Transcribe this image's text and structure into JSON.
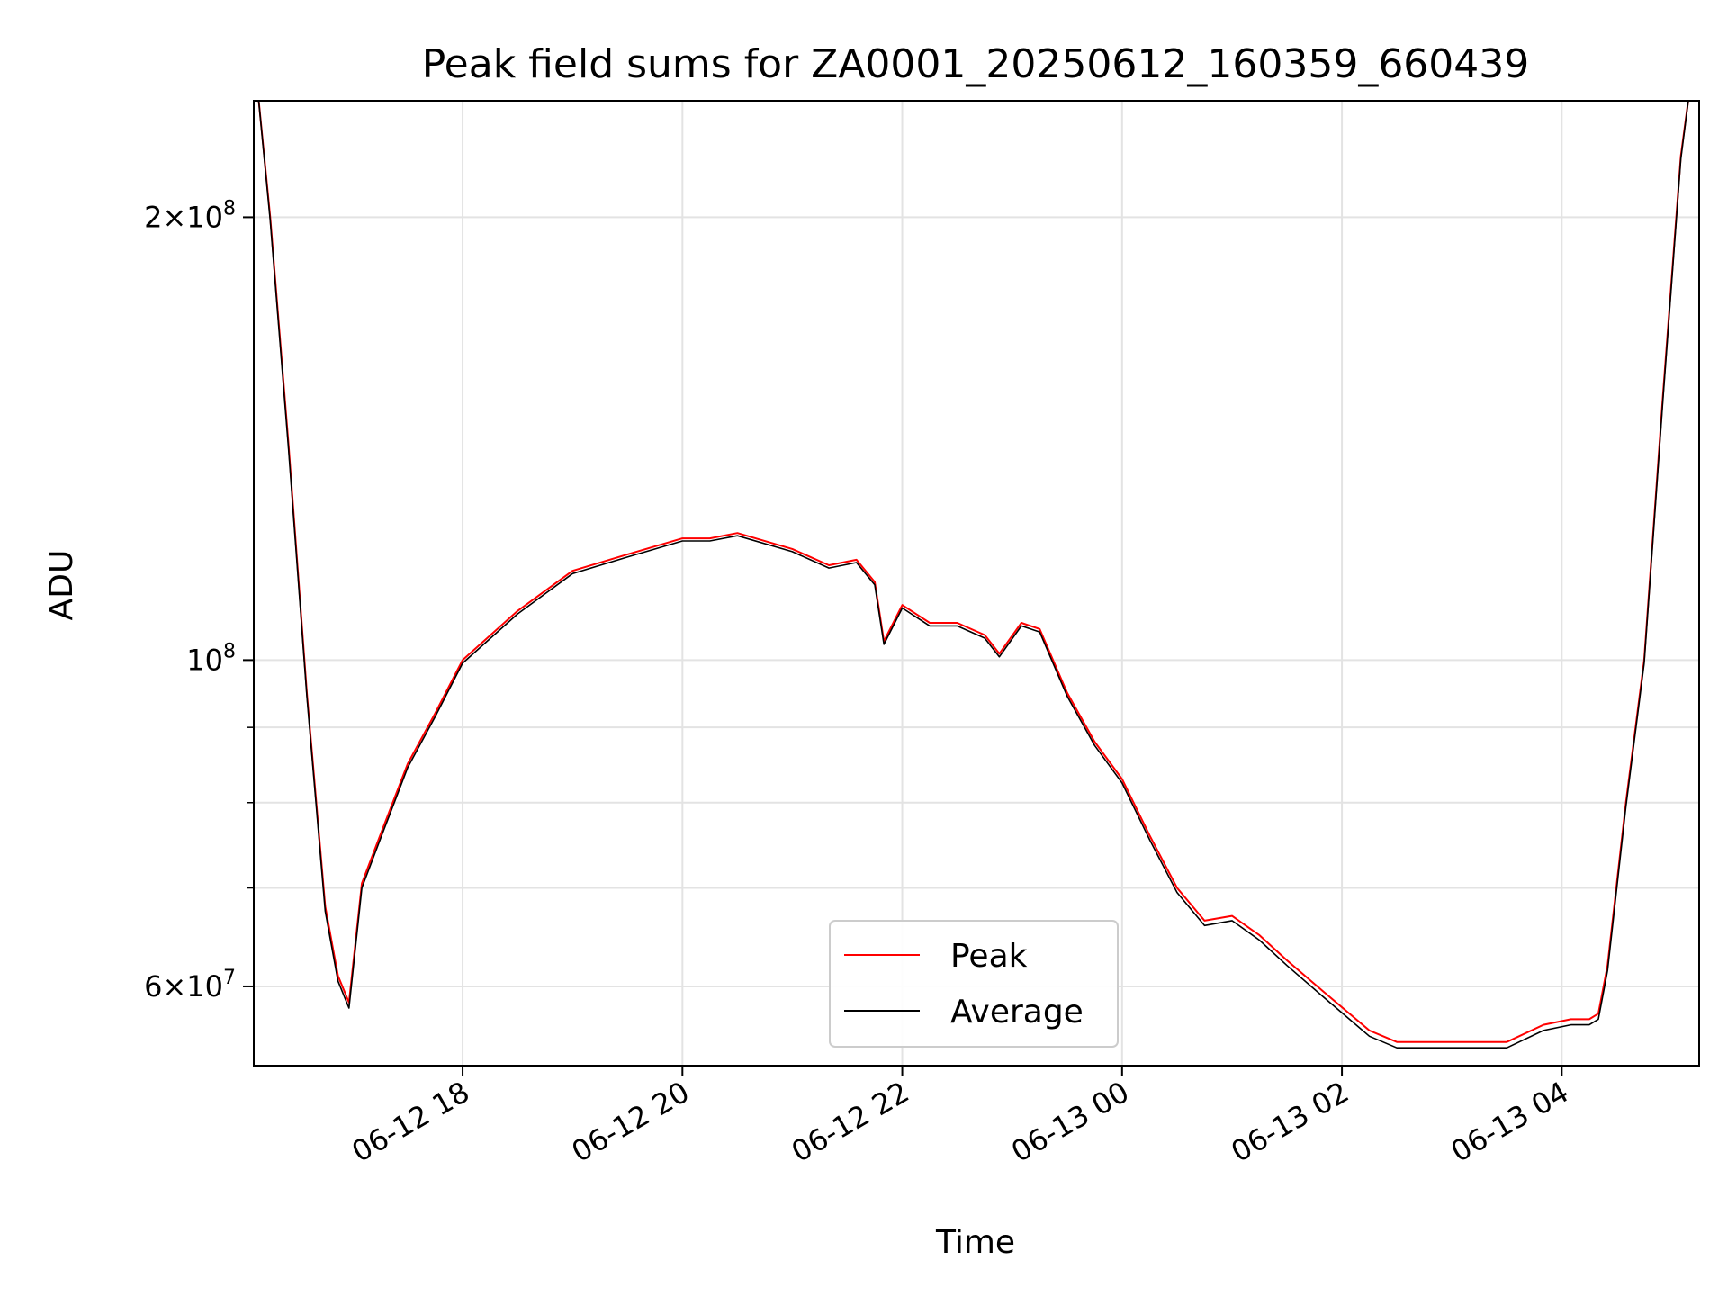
{
  "chart_data": {
    "type": "line",
    "title": "Peak field sums for ZA0001_20250612_160359_660439",
    "xlabel": "Time",
    "ylabel": "ADU",
    "yscale": "log",
    "grid": true,
    "legend_position": "lower-center",
    "xlim": [
      "2025-06-12 16:06",
      "2025-06-13 05:15"
    ],
    "ylim": [
      53000000,
      240000000
    ],
    "x_ticks": [
      {
        "value": "2025-06-12 18:00",
        "label": "06-12 18"
      },
      {
        "value": "2025-06-12 20:00",
        "label": "06-12 20"
      },
      {
        "value": "2025-06-12 22:00",
        "label": "06-12 22"
      },
      {
        "value": "2025-06-13 00:00",
        "label": "06-13 00"
      },
      {
        "value": "2025-06-13 02:00",
        "label": "06-13 02"
      },
      {
        "value": "2025-06-13 04:00",
        "label": "06-13 04"
      }
    ],
    "y_ticks": [
      {
        "value": 200000000,
        "mantissa": "2",
        "times": "×",
        "base": "10",
        "exp": "8"
      },
      {
        "value": 100000000,
        "mantissa": "",
        "times": "",
        "base": "10",
        "exp": "8"
      },
      {
        "value": 60000000,
        "mantissa": "6",
        "times": "×",
        "base": "10",
        "exp": "7"
      }
    ],
    "y_minor_ticks": [
      70000000,
      80000000,
      90000000
    ],
    "series": [
      {
        "name": "Peak",
        "color": "#ff0000",
        "x": [
          "2025-06-12 16:08",
          "2025-06-12 16:15",
          "2025-06-12 16:25",
          "2025-06-12 16:35",
          "2025-06-12 16:45",
          "2025-06-12 16:52",
          "2025-06-12 16:58",
          "2025-06-12 17:05",
          "2025-06-12 17:15",
          "2025-06-12 17:30",
          "2025-06-12 17:45",
          "2025-06-12 18:00",
          "2025-06-12 18:30",
          "2025-06-12 19:00",
          "2025-06-12 19:30",
          "2025-06-12 20:00",
          "2025-06-12 20:15",
          "2025-06-12 20:30",
          "2025-06-12 21:00",
          "2025-06-12 21:20",
          "2025-06-12 21:35",
          "2025-06-12 21:45",
          "2025-06-12 21:50",
          "2025-06-12 22:00",
          "2025-06-12 22:15",
          "2025-06-12 22:30",
          "2025-06-12 22:45",
          "2025-06-12 22:53",
          "2025-06-12 23:05",
          "2025-06-12 23:15",
          "2025-06-12 23:30",
          "2025-06-12 23:45",
          "2025-06-13 00:00",
          "2025-06-13 00:15",
          "2025-06-13 00:30",
          "2025-06-13 00:45",
          "2025-06-13 01:00",
          "2025-06-13 01:15",
          "2025-06-13 01:30",
          "2025-06-13 01:50",
          "2025-06-13 02:15",
          "2025-06-13 02:30",
          "2025-06-13 03:00",
          "2025-06-13 03:30",
          "2025-06-13 03:50",
          "2025-06-13 04:05",
          "2025-06-13 04:15",
          "2025-06-13 04:20",
          "2025-06-13 04:25",
          "2025-06-13 04:35",
          "2025-06-13 04:45",
          "2025-06-13 04:55",
          "2025-06-13 05:05",
          "2025-06-13 05:10"
        ],
        "y": [
          245000000,
          200000000,
          140000000,
          95000000,
          68000000,
          61000000,
          58500000,
          70500000,
          76000000,
          85000000,
          92000000,
          100000000,
          108000000,
          115000000,
          118000000,
          121000000,
          121000000,
          122000000,
          119000000,
          116000000,
          117000000,
          113000000,
          103000000,
          109000000,
          106000000,
          106000000,
          104000000,
          101000000,
          106000000,
          105000000,
          95000000,
          88000000,
          83000000,
          76000000,
          70000000,
          66500000,
          67000000,
          65000000,
          62500000,
          59500000,
          56000000,
          55000000,
          55000000,
          55000000,
          56500000,
          57000000,
          57000000,
          57500000,
          62000000,
          80000000,
          100000000,
          150000000,
          220000000,
          245000000
        ]
      },
      {
        "name": "Average",
        "color": "#000000",
        "x": [
          "2025-06-12 16:08",
          "2025-06-12 16:15",
          "2025-06-12 16:25",
          "2025-06-12 16:35",
          "2025-06-12 16:45",
          "2025-06-12 16:52",
          "2025-06-12 16:58",
          "2025-06-12 17:05",
          "2025-06-12 17:15",
          "2025-06-12 17:30",
          "2025-06-12 17:45",
          "2025-06-12 18:00",
          "2025-06-12 18:30",
          "2025-06-12 19:00",
          "2025-06-12 19:30",
          "2025-06-12 20:00",
          "2025-06-12 20:15",
          "2025-06-12 20:30",
          "2025-06-12 21:00",
          "2025-06-12 21:20",
          "2025-06-12 21:35",
          "2025-06-12 21:45",
          "2025-06-12 21:50",
          "2025-06-12 22:00",
          "2025-06-12 22:15",
          "2025-06-12 22:30",
          "2025-06-12 22:45",
          "2025-06-12 22:53",
          "2025-06-12 23:05",
          "2025-06-12 23:15",
          "2025-06-12 23:30",
          "2025-06-12 23:45",
          "2025-06-13 00:00",
          "2025-06-13 00:15",
          "2025-06-13 00:30",
          "2025-06-13 00:45",
          "2025-06-13 01:00",
          "2025-06-13 01:15",
          "2025-06-13 01:30",
          "2025-06-13 01:50",
          "2025-06-13 02:15",
          "2025-06-13 02:30",
          "2025-06-13 03:00",
          "2025-06-13 03:30",
          "2025-06-13 03:50",
          "2025-06-13 04:05",
          "2025-06-13 04:15",
          "2025-06-13 04:20",
          "2025-06-13 04:25",
          "2025-06-13 04:35",
          "2025-06-13 04:45",
          "2025-06-13 04:55",
          "2025-06-13 05:05",
          "2025-06-13 05:10"
        ],
        "y": [
          245000000,
          199000000,
          139000000,
          94500000,
          67500000,
          60500000,
          58000000,
          70000000,
          75500000,
          84500000,
          91500000,
          99500000,
          107500000,
          114500000,
          117500000,
          120500000,
          120500000,
          121500000,
          118500000,
          115500000,
          116500000,
          112500000,
          102500000,
          108500000,
          105500000,
          105500000,
          103500000,
          100500000,
          105500000,
          104500000,
          94500000,
          87500000,
          82500000,
          75500000,
          69500000,
          66000000,
          66500000,
          64500000,
          62000000,
          59000000,
          55500000,
          54500000,
          54500000,
          54500000,
          56000000,
          56500000,
          56500000,
          57000000,
          61500000,
          79500000,
          99500000,
          149000000,
          219000000,
          245000000
        ]
      }
    ]
  }
}
